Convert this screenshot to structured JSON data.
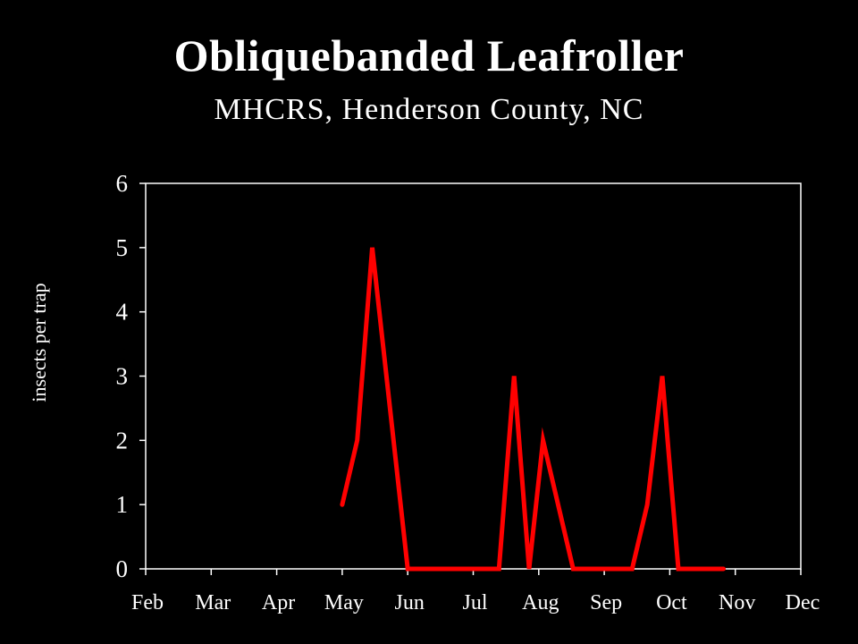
{
  "chart_data": {
    "type": "line",
    "title": "Obliquebanded Leafroller",
    "subtitle": "MHCRS, Henderson County, NC",
    "xlabel": "",
    "ylabel": "insects per trap",
    "x_tick_labels": [
      "Feb",
      "Mar",
      "Apr",
      "May",
      "Jun",
      "Jul",
      "Aug",
      "Sep",
      "Oct",
      "Nov",
      "Dec"
    ],
    "y_tick_labels": [
      "0",
      "1",
      "2",
      "3",
      "4",
      "5",
      "6"
    ],
    "ylim": [
      0,
      6
    ],
    "grid": false,
    "legend": "none",
    "series": [
      {
        "color": "#ff0000",
        "x": [
          "May 1",
          "May 8",
          "May 15",
          "Jun 1",
          "Jun 15",
          "Jul 1",
          "Jul 13",
          "Jul 20",
          "Jul 27",
          "Aug 3",
          "Aug 17",
          "Sep 1",
          "Sep 14",
          "Sep 21",
          "Sep 28",
          "Oct 5",
          "Oct 15",
          "Oct 26"
        ],
        "values": [
          1,
          2,
          5,
          0,
          0,
          0,
          0,
          3,
          0,
          2,
          0,
          0,
          0,
          1,
          3,
          0,
          0,
          0
        ]
      }
    ],
    "colors": {
      "background": "#000000",
      "text": "#ffffff",
      "axes": "#ffffff",
      "line": "#ff0000"
    }
  }
}
